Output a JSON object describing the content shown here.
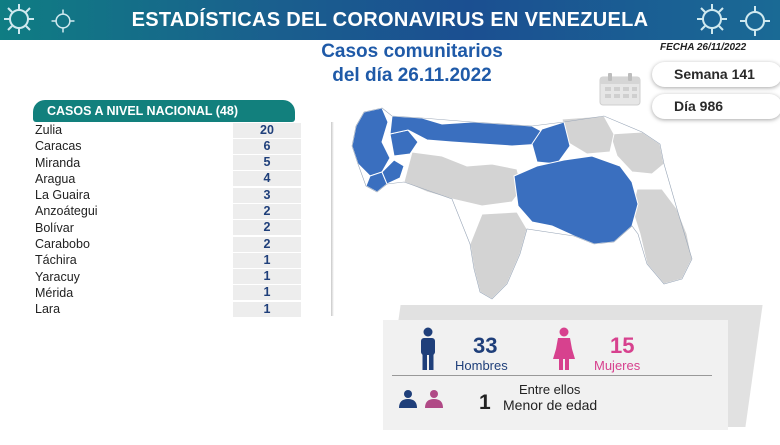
{
  "header": {
    "title": "ESTADÍSTICAS DEL CORONAVIRUS EN VENEZUELA"
  },
  "subtitle": {
    "line1": "Casos comunitarios",
    "line2": "del día 26.11.2022"
  },
  "fecha": "FECHA 26/11/2022",
  "semana": "Semana 141",
  "dia": "Día 986",
  "table": {
    "header": "CASOS A NIVEL NACIONAL  (48)",
    "rows": [
      {
        "name": "Zulia",
        "value": "20"
      },
      {
        "name": "Caracas",
        "value": "6"
      },
      {
        "name": "Miranda",
        "value": "5"
      },
      {
        "name": "Aragua",
        "value": "4"
      },
      {
        "name": "La Guaira",
        "value": "3"
      },
      {
        "name": "Anzoátegui",
        "value": "2"
      },
      {
        "name": "Bolívar",
        "value": "2"
      },
      {
        "name": "Carabobo",
        "value": "2"
      },
      {
        "name": "Táchira",
        "value": "1"
      },
      {
        "name": "Yaracuy",
        "value": "1"
      },
      {
        "name": "Mérida",
        "value": "1"
      },
      {
        "name": "Lara",
        "value": "1"
      }
    ]
  },
  "demographics": {
    "men_count": "33",
    "men_label": "Hombres",
    "women_count": "15",
    "women_label": "Mujeres",
    "entre_label": "Entre ellos",
    "minor_count": "1",
    "minor_label": "Menor de edad"
  },
  "colors": {
    "banner": "#1b4f91",
    "table_header": "#12807d",
    "map_affected": "#3a6fbf",
    "map_other": "#d3d3d3",
    "men": "#1f3f7a",
    "women": "#d7418e"
  },
  "icons": [
    "virus-icon",
    "calendar-icon",
    "man-icon",
    "woman-icon",
    "people-icon"
  ]
}
